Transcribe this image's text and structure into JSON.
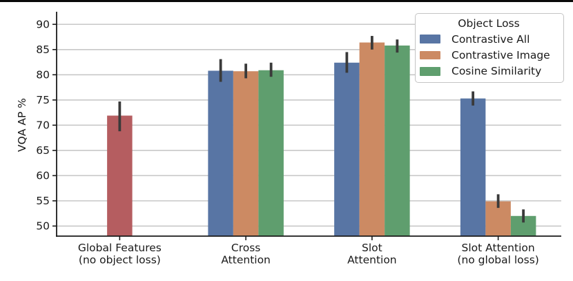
{
  "chart_data": {
    "type": "bar",
    "title": "",
    "xlabel": "",
    "ylabel": "VQA AP %",
    "ylim": [
      48,
      92.5
    ],
    "yticks": [
      50,
      55,
      60,
      65,
      70,
      75,
      80,
      85,
      90
    ],
    "grid": "horizontal",
    "grid_color": "#c8c8c8",
    "error_bar_color": "#3a3a3a",
    "categories": [
      "Global Features\n(no object loss)",
      "Cross\nAttention",
      "Slot\nAttention",
      "Slot Attention\n(no global loss)"
    ],
    "series": [
      {
        "name": "Global Features (no object loss)",
        "color": "#b55d60",
        "in_legend": false,
        "values": [
          71.9,
          null,
          null,
          null
        ],
        "error_low": [
          68.8,
          null,
          null,
          null
        ],
        "error_high": [
          74.7,
          null,
          null,
          null
        ]
      },
      {
        "name": "Contrastive All",
        "color": "#5875a4",
        "in_legend": true,
        "values": [
          null,
          80.8,
          82.4,
          75.3
        ],
        "error_low": [
          null,
          78.6,
          80.4,
          73.9
        ],
        "error_high": [
          null,
          83.1,
          84.5,
          76.7
        ]
      },
      {
        "name": "Contrastive Image",
        "color": "#cc8a63",
        "in_legend": true,
        "values": [
          null,
          80.7,
          86.4,
          54.9
        ],
        "error_low": [
          null,
          79.3,
          85.0,
          53.6
        ],
        "error_high": [
          null,
          82.2,
          87.7,
          56.3
        ]
      },
      {
        "name": "Cosine Similarity",
        "color": "#5f9e6e",
        "in_legend": true,
        "values": [
          null,
          80.9,
          85.8,
          52.0
        ],
        "error_low": [
          null,
          79.6,
          84.4,
          50.7
        ],
        "error_high": [
          null,
          82.4,
          87.0,
          53.3
        ]
      }
    ],
    "legend": {
      "title": "Object Loss",
      "position": "upper right",
      "entries": [
        "Contrastive All",
        "Contrastive Image",
        "Cosine Similarity"
      ]
    }
  }
}
